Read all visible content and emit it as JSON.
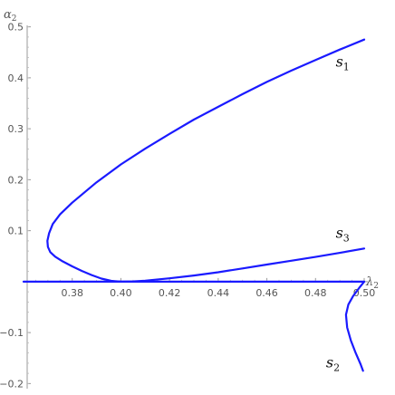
{
  "chart_data": {
    "type": "line",
    "title": "",
    "xlabel": {
      "base": "λ",
      "sub": "2"
    },
    "ylabel": {
      "base": "α",
      "sub": "2"
    },
    "xlim": [
      0.36,
      0.5
    ],
    "ylim": [
      -0.21,
      0.51
    ],
    "x_ticks": [
      {
        "value": 0.38,
        "label": "0.38"
      },
      {
        "value": 0.4,
        "label": "0.40"
      },
      {
        "value": 0.42,
        "label": "0.42"
      },
      {
        "value": 0.44,
        "label": "0.44"
      },
      {
        "value": 0.46,
        "label": "0.46"
      },
      {
        "value": 0.48,
        "label": "0.48"
      },
      {
        "value": 0.5,
        "label": "0.50"
      }
    ],
    "y_ticks": [
      {
        "value": 0.5,
        "label": "0.5"
      },
      {
        "value": 0.4,
        "label": "0.4"
      },
      {
        "value": 0.3,
        "label": "0.3"
      },
      {
        "value": 0.2,
        "label": "0.2"
      },
      {
        "value": 0.1,
        "label": "0.1"
      },
      {
        "value": -0.1,
        "label": "−0.1"
      },
      {
        "value": -0.2,
        "label": "−0.2"
      }
    ],
    "grid": false,
    "color": "#1a1aff",
    "series": [
      {
        "name": "s1",
        "label": {
          "base": "s",
          "sub": "1"
        },
        "points": [
          [
            0.5,
            0.475
          ],
          [
            0.49,
            0.4555
          ],
          [
            0.48,
            0.435
          ],
          [
            0.47,
            0.414
          ],
          [
            0.46,
            0.392
          ],
          [
            0.45,
            0.368
          ],
          [
            0.44,
            0.343
          ],
          [
            0.43,
            0.318
          ],
          [
            0.42,
            0.29
          ],
          [
            0.41,
            0.261
          ],
          [
            0.4,
            0.23
          ],
          [
            0.39,
            0.195
          ],
          [
            0.38,
            0.155
          ],
          [
            0.375,
            0.132
          ],
          [
            0.372,
            0.113
          ],
          [
            0.3705,
            0.095
          ],
          [
            0.3698,
            0.08
          ],
          [
            0.37,
            0.068
          ],
          [
            0.371,
            0.058
          ],
          [
            0.373,
            0.049
          ],
          [
            0.376,
            0.04
          ],
          [
            0.38,
            0.03
          ],
          [
            0.384,
            0.021
          ],
          [
            0.388,
            0.013
          ],
          [
            0.392,
            0.006
          ],
          [
            0.396,
            0.0015
          ],
          [
            0.4,
            0.0
          ]
        ]
      },
      {
        "name": "s3",
        "label": {
          "base": "s",
          "sub": "3"
        },
        "points": [
          [
            0.396,
            0.0
          ],
          [
            0.4,
            0.0
          ],
          [
            0.405,
            0.0005
          ],
          [
            0.41,
            0.002
          ],
          [
            0.42,
            0.0065
          ],
          [
            0.43,
            0.012
          ],
          [
            0.44,
            0.0185
          ],
          [
            0.45,
            0.026
          ],
          [
            0.46,
            0.0335
          ],
          [
            0.47,
            0.041
          ],
          [
            0.48,
            0.0485
          ],
          [
            0.49,
            0.0565
          ],
          [
            0.5,
            0.065
          ]
        ]
      },
      {
        "name": "s2",
        "label": {
          "base": "s",
          "sub": "2"
        },
        "points": [
          [
            0.5,
            0.0
          ],
          [
            0.498,
            -0.012
          ],
          [
            0.4955,
            -0.028
          ],
          [
            0.4935,
            -0.045
          ],
          [
            0.4925,
            -0.065
          ],
          [
            0.493,
            -0.09
          ],
          [
            0.4945,
            -0.115
          ],
          [
            0.4965,
            -0.14
          ],
          [
            0.4985,
            -0.162
          ],
          [
            0.4995,
            -0.175
          ]
        ]
      },
      {
        "name": "axis-segment",
        "points": [
          [
            0.36,
            0.0
          ],
          [
            0.5,
            0.0
          ]
        ]
      }
    ]
  }
}
